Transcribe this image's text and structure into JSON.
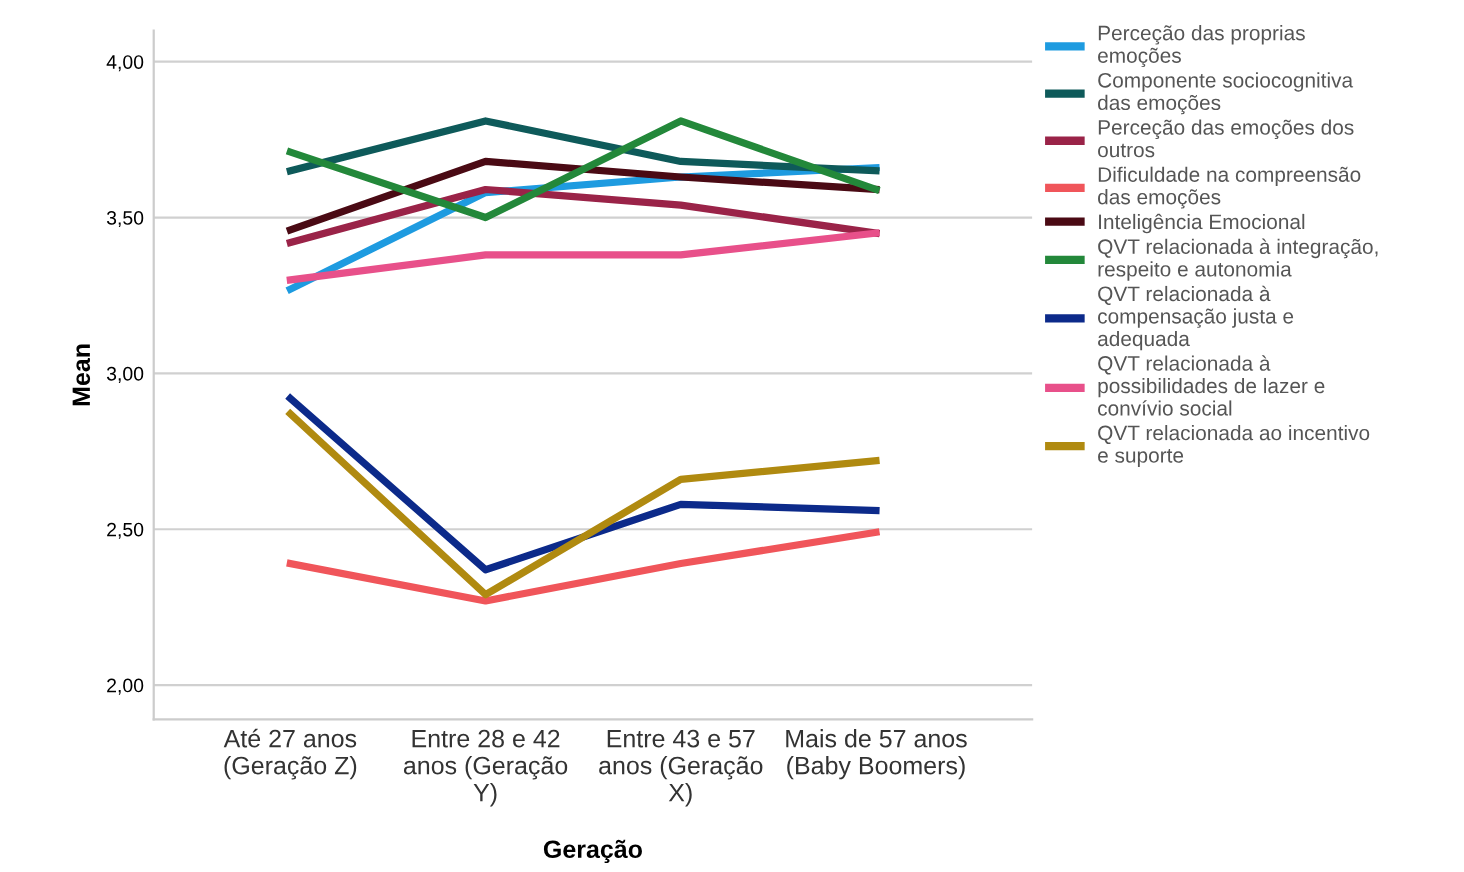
{
  "chart_data": {
    "type": "line",
    "xlabel": "Geração",
    "ylabel": "Mean",
    "categories": [
      "Até 27 anos\n(Geração Z)",
      "Entre 28 e 42\nanos (Geração\nY)",
      "Entre 43 e 57\nanos (Geração\nX)",
      "Mais de 57 anos\n(Baby Boomers)"
    ],
    "ylim": [
      1.89,
      4.1
    ],
    "yticks": [
      {
        "value": 2.0,
        "label": "2,00"
      },
      {
        "value": 2.5,
        "label": "2,50"
      },
      {
        "value": 3.0,
        "label": "3,00"
      },
      {
        "value": 3.5,
        "label": "3,50"
      },
      {
        "value": 4.0,
        "label": "4,00"
      }
    ],
    "grid": "y",
    "legend": "right",
    "marker": "none",
    "line_style": "solid",
    "series": [
      {
        "name": "Perceção das proprias\nemoções",
        "color": "#1e9be0",
        "values": [
          3.27,
          3.58,
          3.63,
          3.66
        ]
      },
      {
        "name": "Componente sociocognitiva\ndas emoções",
        "color": "#0e5a5a",
        "values": [
          3.65,
          3.81,
          3.68,
          3.65
        ]
      },
      {
        "name": "Perceção das emoções dos\noutros",
        "color": "#9a2348",
        "values": [
          3.42,
          3.59,
          3.54,
          3.45
        ]
      },
      {
        "name": "Dificuldade na compreensão\ndas emoções",
        "color": "#f0555a",
        "values": [
          2.39,
          2.27,
          2.39,
          2.49
        ]
      },
      {
        "name": "Inteligência Emocional",
        "color": "#4a0a14",
        "values": [
          3.46,
          3.68,
          3.63,
          3.59
        ]
      },
      {
        "name": "QVT relacionada à integração,\nrespeito e autonomia",
        "color": "#23883a",
        "values": [
          3.71,
          3.5,
          3.81,
          3.59
        ]
      },
      {
        "name": "QVT relacionada à\ncompensação justa e\nadequada",
        "color": "#0c2a8a",
        "values": [
          2.92,
          2.37,
          2.58,
          2.56
        ]
      },
      {
        "name": "QVT relacionada à\npossibilidades de lazer e\nconvívio social",
        "color": "#e8508a",
        "values": [
          3.3,
          3.38,
          3.38,
          3.45
        ]
      },
      {
        "name": "QVT relacionada ao incentivo\ne suporte",
        "color": "#b08a10",
        "values": [
          2.87,
          2.29,
          2.66,
          2.72
        ]
      }
    ]
  }
}
